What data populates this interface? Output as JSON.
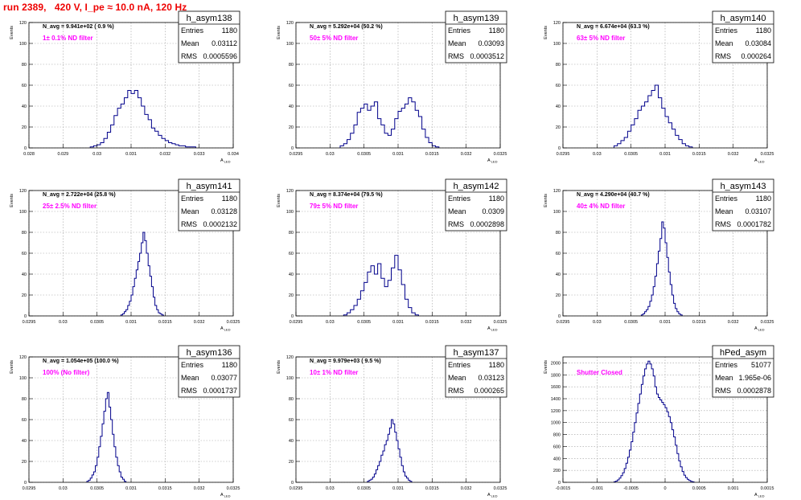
{
  "run_title": "run 2389,   420 V, I_pe ≈ 10.0 nA, 120 Hz",
  "stats_labels": [
    "Entries",
    "Mean",
    "RMS"
  ],
  "colors": {
    "hist": "#00008b",
    "title": "#ee0000",
    "annotation": "#ff00ff",
    "grid": "#a0a0a0"
  },
  "chart_data": [
    {
      "type": "histogram",
      "hist_name": "h_asym138",
      "navg": "N_avg = 9.941e+02 ( 0.9 %)",
      "filter": "1± 0.1% ND filter",
      "entries": "1180",
      "mean": "0.03112",
      "rms": "0.0005596",
      "ylabel": "Events",
      "xlabel": "A_LED",
      "xlim": [
        0.028,
        0.034
      ],
      "ylim": [
        0,
        120
      ],
      "xticks": [
        "0.028",
        "0.029",
        "0.03",
        "0.031",
        "0.032",
        "0.033",
        "0.034"
      ],
      "yticks": [
        "0",
        "20",
        "40",
        "60",
        "80",
        "100",
        "120"
      ],
      "bins": {
        "start": 0.0298,
        "width": 0.0001,
        "counts": [
          1,
          2,
          3,
          5,
          9,
          15,
          22,
          31,
          38,
          42,
          48,
          55,
          52,
          55,
          48,
          40,
          32,
          27,
          19,
          16,
          12,
          9,
          7,
          5,
          4,
          3,
          2,
          2,
          1,
          1,
          1
        ]
      }
    },
    {
      "type": "histogram",
      "hist_name": "h_asym139",
      "navg": "N_avg = 5.292e+04 (50.2 %)",
      "filter": "50± 5% ND filter",
      "entries": "1180",
      "mean": "0.03093",
      "rms": "0.0003512",
      "ylabel": "Events",
      "xlabel": "A_LED",
      "xlim": [
        0.0295,
        0.0325
      ],
      "ylim": [
        0,
        120
      ],
      "xticks": [
        "0.0295",
        "0.03",
        "0.0305",
        "0.031",
        "0.0315",
        "0.032",
        "0.0325"
      ],
      "yticks": [
        "0",
        "20",
        "40",
        "60",
        "80",
        "100",
        "120"
      ],
      "bins": {
        "start": 0.03015,
        "width": 5e-05,
        "counts": [
          2,
          4,
          8,
          14,
          22,
          34,
          38,
          42,
          36,
          40,
          44,
          28,
          22,
          14,
          12,
          18,
          28,
          35,
          38,
          42,
          48,
          44,
          36,
          30,
          18,
          10,
          5,
          2,
          1
        ]
      }
    },
    {
      "type": "histogram",
      "hist_name": "h_asym140",
      "navg": "N_avg = 6.674e+04 (63.3 %)",
      "filter": "63± 5% ND filter",
      "entries": "1180",
      "mean": "0.03084",
      "rms": "0.000264",
      "ylabel": "Events",
      "xlabel": "A_LED",
      "xlim": [
        0.0295,
        0.0325
      ],
      "ylim": [
        0,
        120
      ],
      "xticks": [
        "0.0295",
        "0.03",
        "0.0305",
        "0.031",
        "0.0315",
        "0.032",
        "0.0325"
      ],
      "yticks": [
        "0",
        "20",
        "40",
        "60",
        "80",
        "100",
        "120"
      ],
      "bins": {
        "start": 0.03025,
        "width": 5e-05,
        "counts": [
          2,
          4,
          7,
          10,
          16,
          22,
          28,
          36,
          40,
          44,
          50,
          55,
          60,
          48,
          38,
          30,
          24,
          18,
          12,
          8,
          4,
          2,
          1
        ]
      }
    },
    {
      "type": "histogram",
      "hist_name": "h_asym141",
      "navg": "N_avg = 2.722e+04 (25.8 %)",
      "filter": "25± 2.5% ND filter",
      "entries": "1180",
      "mean": "0.03128",
      "rms": "0.0002132",
      "ylabel": "Events",
      "xlabel": "A_LED",
      "xlim": [
        0.0295,
        0.0325
      ],
      "ylim": [
        0,
        120
      ],
      "xticks": [
        "0.0295",
        "0.03",
        "0.0305",
        "0.031",
        "0.0315",
        "0.032",
        "0.0325"
      ],
      "yticks": [
        "0",
        "20",
        "40",
        "60",
        "80",
        "100",
        "120"
      ],
      "bins": {
        "start": 0.03085,
        "width": 2.5e-05,
        "counts": [
          1,
          2,
          4,
          6,
          10,
          14,
          20,
          28,
          36,
          44,
          52,
          60,
          70,
          80,
          72,
          60,
          48,
          38,
          28,
          18,
          10,
          6,
          3,
          2,
          1
        ]
      }
    },
    {
      "type": "histogram",
      "hist_name": "h_asym142",
      "navg": "N_avg = 8.374e+04 (79.5 %)",
      "filter": "79± 5% ND filter",
      "entries": "1180",
      "mean": "0.0309",
      "rms": "0.0002898",
      "ylabel": "Events",
      "xlabel": "A_LED",
      "xlim": [
        0.0295,
        0.0325
      ],
      "ylim": [
        0,
        120
      ],
      "xticks": [
        "0.0295",
        "0.03",
        "0.0305",
        "0.031",
        "0.0315",
        "0.032",
        "0.0325"
      ],
      "yticks": [
        "0",
        "20",
        "40",
        "60",
        "80",
        "100",
        "120"
      ],
      "bins": {
        "start": 0.0302,
        "width": 5e-05,
        "counts": [
          1,
          3,
          6,
          10,
          16,
          24,
          32,
          42,
          48,
          40,
          50,
          36,
          28,
          34,
          46,
          58,
          44,
          30,
          16,
          8,
          3,
          1
        ]
      }
    },
    {
      "type": "histogram",
      "hist_name": "h_asym143",
      "navg": "N_avg = 4.290e+04 (40.7 %)",
      "filter": "40± 4% ND filter",
      "entries": "1180",
      "mean": "0.03107",
      "rms": "0.0001782",
      "ylabel": "Events",
      "xlabel": "A_LED",
      "xlim": [
        0.0295,
        0.0325
      ],
      "ylim": [
        0,
        120
      ],
      "xticks": [
        "0.0295",
        "0.03",
        "0.0305",
        "0.031",
        "0.0315",
        "0.032",
        "0.0325"
      ],
      "yticks": [
        "0",
        "20",
        "40",
        "60",
        "80",
        "100",
        "120"
      ],
      "bins": {
        "start": 0.03065,
        "width": 2.5e-05,
        "counts": [
          1,
          2,
          4,
          6,
          9,
          14,
          20,
          28,
          38,
          50,
          62,
          74,
          90,
          84,
          70,
          56,
          42,
          30,
          20,
          12,
          7,
          4,
          2,
          1
        ]
      }
    },
    {
      "type": "histogram",
      "hist_name": "h_asym136",
      "navg": "N_avg = 1.054e+05 (100.0 %)",
      "filter": "100% (No filter)",
      "entries": "1180",
      "mean": "0.03077",
      "rms": "0.0001737",
      "ylabel": "Events",
      "xlabel": "A_LED",
      "xlim": [
        0.0295,
        0.0325
      ],
      "ylim": [
        0,
        120
      ],
      "xticks": [
        "0.0295",
        "0.03",
        "0.0305",
        "0.031",
        "0.0315",
        "0.032",
        "0.0325"
      ],
      "yticks": [
        "0",
        "20",
        "40",
        "60",
        "80",
        "100",
        "120"
      ],
      "bins": {
        "start": 0.03035,
        "width": 2.5e-05,
        "counts": [
          1,
          2,
          4,
          7,
          10,
          16,
          24,
          34,
          44,
          56,
          68,
          80,
          86,
          72,
          60,
          46,
          34,
          24,
          16,
          10,
          5,
          3,
          1
        ]
      }
    },
    {
      "type": "histogram",
      "hist_name": "h_asym137",
      "navg": "N_avg = 9.979e+03 ( 9.5 %)",
      "filter": "10± 1% ND filter",
      "entries": "1180",
      "mean": "0.03123",
      "rms": "0.000265",
      "ylabel": "Events",
      "xlabel": "A_LED",
      "xlim": [
        0.0295,
        0.0325
      ],
      "ylim": [
        0,
        120
      ],
      "xticks": [
        "0.0295",
        "0.03",
        "0.0305",
        "0.031",
        "0.0315",
        "0.032",
        "0.0325"
      ],
      "yticks": [
        "0",
        "20",
        "40",
        "60",
        "80",
        "100",
        "120"
      ],
      "bins": {
        "start": 0.03055,
        "width": 2.5e-05,
        "counts": [
          1,
          2,
          3,
          5,
          8,
          12,
          16,
          20,
          26,
          30,
          36,
          40,
          46,
          52,
          60,
          56,
          48,
          40,
          32,
          24,
          16,
          10,
          6,
          4,
          2,
          1
        ]
      }
    },
    {
      "type": "histogram",
      "hist_name": "hPed_asym",
      "navg": "",
      "filter": "Shutter Closed",
      "entries": "51077",
      "mean": "1.965e-06",
      "rms": "0.0002878",
      "ylabel": "Events",
      "xlabel": "A_LED",
      "xlim": [
        -0.0015,
        0.0015
      ],
      "ylim": [
        0,
        2100
      ],
      "xticks": [
        "-0.0015",
        "-0.001",
        "-0.0005",
        "0",
        "0.0005",
        "0.001",
        "0.0015"
      ],
      "yticks": [
        "0",
        "200",
        "400",
        "600",
        "800",
        "1000",
        "1200",
        "1400",
        "1600",
        "1800",
        "2000"
      ],
      "bins": {
        "start": -0.00075,
        "width": 2.5e-05,
        "counts": [
          10,
          20,
          40,
          70,
          110,
          160,
          230,
          320,
          420,
          540,
          680,
          840,
          1000,
          1160,
          1320,
          1480,
          1640,
          1780,
          1900,
          1980,
          2030,
          1980,
          1900,
          1780,
          1600,
          1480,
          1420,
          1380,
          1340,
          1300,
          1250,
          1180,
          1100,
          1000,
          880,
          760,
          620,
          480,
          360,
          260,
          180,
          120,
          80,
          50,
          30,
          15,
          8
        ]
      }
    }
  ]
}
